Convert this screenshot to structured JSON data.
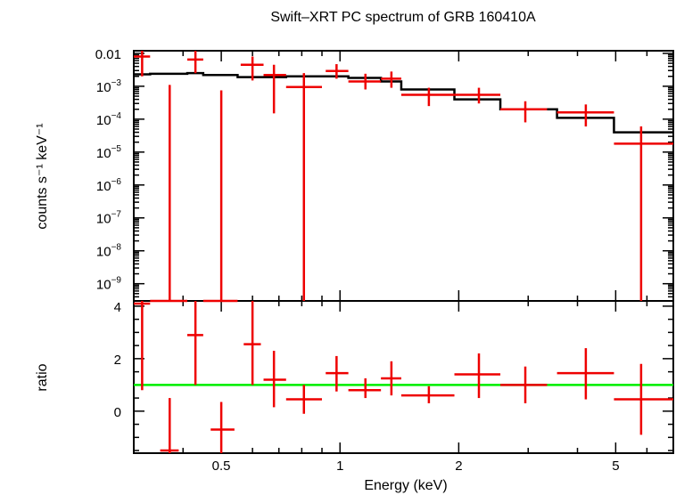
{
  "chart_data": [
    {
      "type": "scatter",
      "panel": "spectrum",
      "title": "Swift–XRT PC spectrum of GRB 160410A",
      "ylabel": "counts s⁻¹ keV⁻¹",
      "xscale": "log",
      "yscale": "log",
      "xlim": [
        0.3,
        7.0
      ],
      "ylim": [
        3e-10,
        0.012
      ],
      "ytick_labels": [
        {
          "value": 0.01,
          "base": "0.01",
          "exp": ""
        },
        {
          "value": 0.001,
          "base": "10",
          "exp": "−3"
        },
        {
          "value": 0.0001,
          "base": "10",
          "exp": "−4"
        },
        {
          "value": 1e-05,
          "base": "10",
          "exp": "−5"
        },
        {
          "value": 1e-06,
          "base": "10",
          "exp": "−6"
        },
        {
          "value": 1e-07,
          "base": "10",
          "exp": "−7"
        },
        {
          "value": 1e-08,
          "base": "10",
          "exp": "−8"
        },
        {
          "value": 1e-09,
          "base": "10",
          "exp": "−9"
        }
      ],
      "data_color": "#ee0000",
      "model_color": "#000000",
      "data_points": [
        {
          "x": 0.315,
          "xlo": 0.3,
          "xhi": 0.33,
          "y": 0.008,
          "ylo": 0.002,
          "yhi": 0.012
        },
        {
          "x": 0.37,
          "xlo": 0.33,
          "xhi": 0.41,
          "y": 3e-10,
          "ylo": 3e-10,
          "yhi": 0.0011
        },
        {
          "x": 0.43,
          "xlo": 0.41,
          "xhi": 0.45,
          "y": 0.0065,
          "ylo": 0.0025,
          "yhi": 0.012
        },
        {
          "x": 0.5,
          "xlo": 0.45,
          "xhi": 0.55,
          "y": 3e-10,
          "ylo": 3e-10,
          "yhi": 0.00075
        },
        {
          "x": 0.6,
          "xlo": 0.56,
          "xhi": 0.64,
          "y": 0.0045,
          "ylo": 0.0015,
          "yhi": 0.008
        },
        {
          "x": 0.68,
          "xlo": 0.64,
          "xhi": 0.73,
          "y": 0.0022,
          "ylo": 0.00015,
          "yhi": 0.0045
        },
        {
          "x": 0.81,
          "xlo": 0.73,
          "xhi": 0.9,
          "y": 0.00095,
          "ylo": 3e-10,
          "yhi": 0.0025
        },
        {
          "x": 0.98,
          "xlo": 0.92,
          "xhi": 1.05,
          "y": 0.0029,
          "ylo": 0.0017,
          "yhi": 0.0047
        },
        {
          "x": 1.16,
          "xlo": 1.05,
          "xhi": 1.27,
          "y": 0.0014,
          "ylo": 0.0008,
          "yhi": 0.0024
        },
        {
          "x": 1.35,
          "xlo": 1.27,
          "xhi": 1.43,
          "y": 0.0017,
          "ylo": 0.0009,
          "yhi": 0.0028
        },
        {
          "x": 1.68,
          "xlo": 1.43,
          "xhi": 1.95,
          "y": 0.00055,
          "ylo": 0.00025,
          "yhi": 0.0009
        },
        {
          "x": 2.25,
          "xlo": 1.95,
          "xhi": 2.55,
          "y": 0.00055,
          "ylo": 0.0003,
          "yhi": 0.0009
        },
        {
          "x": 2.95,
          "xlo": 2.55,
          "xhi": 3.35,
          "y": 0.0002,
          "ylo": 8e-05,
          "yhi": 0.00035
        },
        {
          "x": 4.2,
          "xlo": 3.55,
          "xhi": 4.95,
          "y": 0.00016,
          "ylo": 6e-05,
          "yhi": 0.00028
        },
        {
          "x": 5.8,
          "xlo": 4.95,
          "xhi": 7.0,
          "y": 1.8e-05,
          "ylo": 3e-10,
          "yhi": 6e-05
        }
      ],
      "model_steps": [
        {
          "xlo": 0.3,
          "xhi": 0.33,
          "y": 0.0023
        },
        {
          "xlo": 0.33,
          "xhi": 0.41,
          "y": 0.0024
        },
        {
          "xlo": 0.41,
          "xhi": 0.45,
          "y": 0.0025
        },
        {
          "xlo": 0.45,
          "xhi": 0.55,
          "y": 0.0022
        },
        {
          "xlo": 0.55,
          "xhi": 0.64,
          "y": 0.0019
        },
        {
          "xlo": 0.64,
          "xhi": 0.73,
          "y": 0.0019
        },
        {
          "xlo": 0.73,
          "xhi": 0.92,
          "y": 0.002
        },
        {
          "xlo": 0.92,
          "xhi": 1.05,
          "y": 0.002
        },
        {
          "xlo": 1.05,
          "xhi": 1.27,
          "y": 0.0018
        },
        {
          "xlo": 1.27,
          "xhi": 1.43,
          "y": 0.0014
        },
        {
          "xlo": 1.43,
          "xhi": 1.95,
          "y": 0.0008
        },
        {
          "xlo": 1.95,
          "xhi": 2.55,
          "y": 0.0004
        },
        {
          "xlo": 2.55,
          "xhi": 3.55,
          "y": 0.0002
        },
        {
          "xlo": 3.55,
          "xhi": 4.95,
          "y": 0.00011
        },
        {
          "xlo": 4.95,
          "xhi": 7.0,
          "y": 4e-05
        }
      ]
    },
    {
      "type": "scatter",
      "panel": "ratio",
      "xlabel": "Energy (keV)",
      "ylabel": "ratio",
      "xscale": "log",
      "yscale": "linear",
      "xlim": [
        0.3,
        7.0
      ],
      "ylim": [
        -1.6,
        4.2
      ],
      "xtick_labels": [
        {
          "value": 0.5,
          "label": "0.5"
        },
        {
          "value": 1,
          "label": "1"
        },
        {
          "value": 2,
          "label": "2"
        },
        {
          "value": 5,
          "label": "5"
        }
      ],
      "ytick_labels": [
        {
          "value": 0,
          "label": "0"
        },
        {
          "value": 2,
          "label": "2"
        },
        {
          "value": 4,
          "label": "4"
        }
      ],
      "reference_line": {
        "y": 1,
        "color": "#00ee00"
      },
      "data_color": "#ee0000",
      "data_points": [
        {
          "x": 0.315,
          "xlo": 0.3,
          "xhi": 0.33,
          "y": 4.1,
          "ylo": 0.8,
          "yhi": 4.2
        },
        {
          "x": 0.37,
          "xlo": 0.35,
          "xhi": 0.39,
          "y": -1.5,
          "ylo": -1.6,
          "yhi": 0.5
        },
        {
          "x": 0.43,
          "xlo": 0.41,
          "xhi": 0.45,
          "y": 2.9,
          "ylo": 1.0,
          "yhi": 4.2
        },
        {
          "x": 0.5,
          "xlo": 0.47,
          "xhi": 0.54,
          "y": -0.7,
          "ylo": -1.6,
          "yhi": 0.35
        },
        {
          "x": 0.6,
          "xlo": 0.57,
          "xhi": 0.63,
          "y": 2.55,
          "ylo": 1.0,
          "yhi": 4.2
        },
        {
          "x": 0.68,
          "xlo": 0.64,
          "xhi": 0.73,
          "y": 1.2,
          "ylo": 0.15,
          "yhi": 2.3
        },
        {
          "x": 0.81,
          "xlo": 0.73,
          "xhi": 0.9,
          "y": 0.45,
          "ylo": -0.1,
          "yhi": 1.0
        },
        {
          "x": 0.98,
          "xlo": 0.92,
          "xhi": 1.05,
          "y": 1.45,
          "ylo": 0.75,
          "yhi": 2.1
        },
        {
          "x": 1.16,
          "xlo": 1.05,
          "xhi": 1.27,
          "y": 0.8,
          "ylo": 0.5,
          "yhi": 1.25
        },
        {
          "x": 1.35,
          "xlo": 1.27,
          "xhi": 1.43,
          "y": 1.25,
          "ylo": 0.6,
          "yhi": 1.9
        },
        {
          "x": 1.68,
          "xlo": 1.43,
          "xhi": 1.95,
          "y": 0.6,
          "ylo": 0.3,
          "yhi": 0.95
        },
        {
          "x": 2.25,
          "xlo": 1.95,
          "xhi": 2.55,
          "y": 1.4,
          "ylo": 0.5,
          "yhi": 2.2
        },
        {
          "x": 2.95,
          "xlo": 2.55,
          "xhi": 3.35,
          "y": 1.0,
          "ylo": 0.3,
          "yhi": 1.7
        },
        {
          "x": 4.2,
          "xlo": 3.55,
          "xhi": 4.95,
          "y": 1.45,
          "ylo": 0.45,
          "yhi": 2.4
        },
        {
          "x": 5.8,
          "xlo": 4.95,
          "xhi": 7.0,
          "y": 0.45,
          "ylo": -0.9,
          "yhi": 1.8
        }
      ]
    }
  ]
}
